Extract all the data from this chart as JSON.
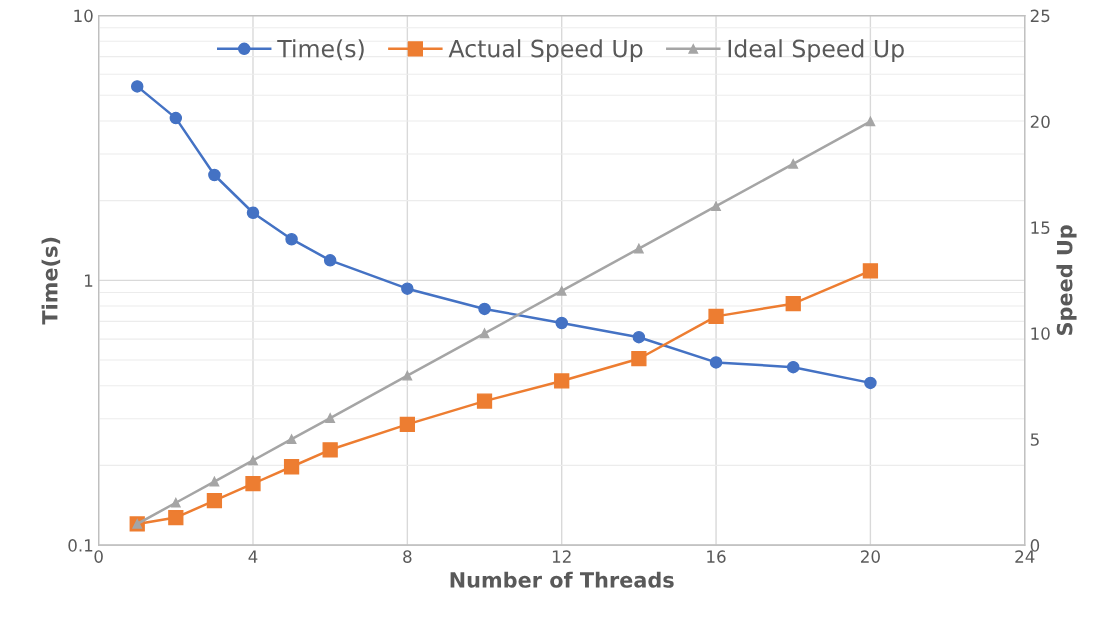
{
  "chart_data": {
    "type": "line",
    "xlabel": "Number of Threads",
    "ylabel": "Time(s)",
    "y2label": "Speed Up",
    "x": [
      1,
      2,
      3,
      4,
      5,
      6,
      8,
      10,
      12,
      14,
      16,
      18,
      20
    ],
    "series": [
      {
        "name": "Time(s)",
        "color": "#4472c4",
        "marker": "circle",
        "values": [
          5.4,
          4.1,
          2.5,
          1.8,
          1.43,
          1.19,
          0.93,
          0.78,
          0.69,
          0.61,
          0.49,
          0.47,
          0.41
        ]
      },
      {
        "name": "Actual Speed Up",
        "color": "#ed7d31",
        "marker": "square",
        "axis": "y2",
        "values": [
          1,
          1.3,
          2.1,
          2.9,
          3.7,
          4.5,
          5.7,
          6.8,
          7.75,
          8.8,
          10.8,
          11.4,
          12.95
        ]
      },
      {
        "name": "Ideal Speed Up",
        "color": "#a5a5a5",
        "marker": "triangle",
        "axis": "y2",
        "values": [
          1,
          2,
          3,
          4,
          5,
          6,
          8,
          10,
          12,
          14,
          16,
          18,
          20
        ]
      }
    ],
    "xlim": [
      0,
      24
    ],
    "xticks": [
      0,
      4,
      8,
      12,
      16,
      20,
      24
    ],
    "log": "y",
    "ylim": [
      0.1,
      10
    ],
    "yticks": [
      0.1,
      1,
      10
    ],
    "y2lim": [
      0,
      25
    ],
    "y2ticks": [
      0,
      5,
      10,
      15,
      20,
      25
    ],
    "grid": true,
    "legend": "top"
  }
}
